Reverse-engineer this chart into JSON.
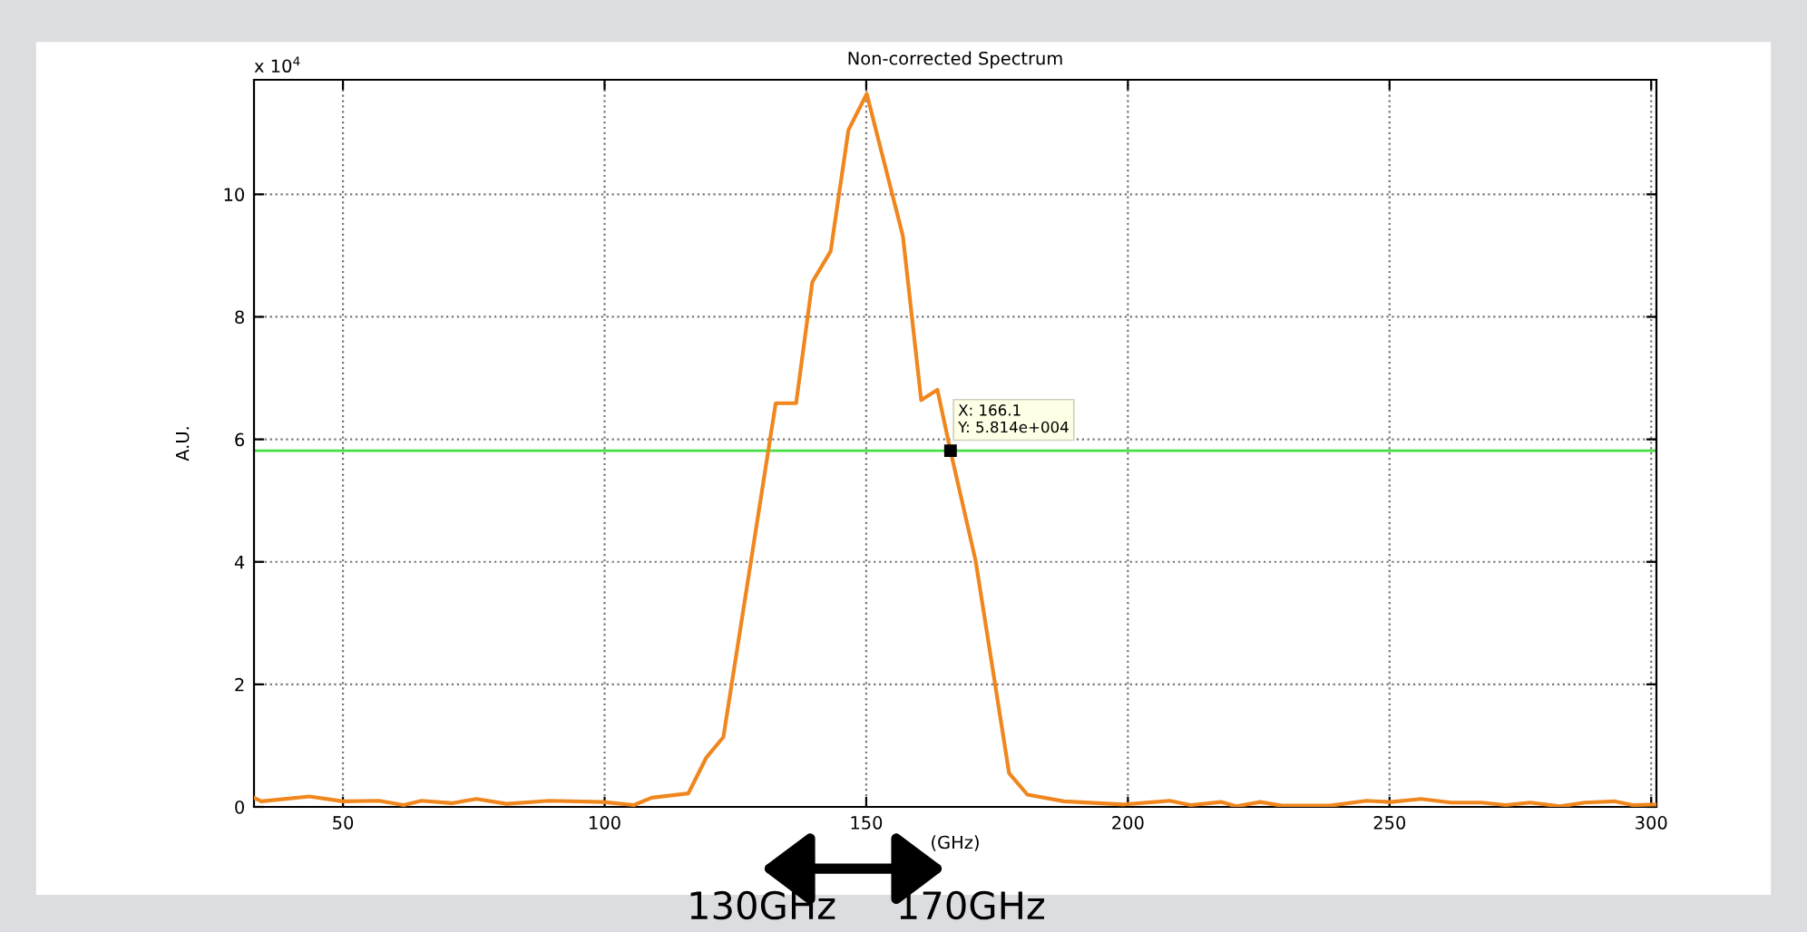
{
  "chart_data": {
    "type": "line",
    "title": "Non-corrected Spectrum",
    "xlabel": "(GHz)",
    "ylabel": "A.U.",
    "series": [
      {
        "color": "#f0871e",
        "x": [
          33,
          34.4,
          43.6,
          50,
          56.9,
          61.6,
          65.0,
          70.8,
          75.5,
          81.3,
          89.4,
          99.8,
          105.6,
          109,
          116,
          119.4,
          122.7,
          132.7,
          136.6,
          139.7,
          143.2,
          146.6,
          150.1,
          157.0,
          160.5,
          163.6,
          166.1,
          170.9,
          177.3,
          180.8,
          187.8,
          199.3,
          208,
          212,
          217.8,
          220.7,
          225.3,
          229.4,
          238.6,
          245.6,
          250.2,
          256,
          261.8,
          267.6,
          272.2,
          276.9,
          282.6,
          287.3,
          293.1,
          296.5,
          301
        ],
        "values": [
          0.15,
          0.09,
          0.17,
          0.09,
          0.1,
          0.03,
          0.1,
          0.06,
          0.13,
          0.05,
          0.1,
          0.08,
          0.03,
          0.15,
          0.22,
          0.8,
          1.14,
          6.59,
          6.59,
          8.57,
          9.07,
          11.05,
          11.64,
          9.32,
          6.64,
          6.81,
          5.81,
          4.02,
          0.55,
          0.2,
          0.09,
          0.04,
          0.1,
          0.03,
          0.08,
          0.01,
          0.08,
          0.02,
          0.02,
          0.1,
          0.08,
          0.13,
          0.07,
          0.07,
          0.03,
          0.07,
          0.01,
          0.07,
          0.09,
          0.03,
          0.04
        ]
      }
    ],
    "xlim": [
      33,
      301
    ],
    "ylim": [
      0,
      11.87
    ],
    "xticks": [
      50,
      100,
      150,
      200,
      250,
      300
    ],
    "yticks": [
      0,
      2,
      4,
      6,
      8,
      10
    ],
    "grid": true,
    "line_style": "solid",
    "marker": "none",
    "ref_lines": [
      {
        "axis": "y",
        "value": 5.814,
        "color": "#44dd44"
      }
    ],
    "annotations": [
      "x 10$^{4}$",
      {
        "text": "X: 166.1\nY: 5.814e+004",
        "x": 166.1,
        "y": 5.814
      },
      "130GHz",
      "170GHz"
    ]
  }
}
